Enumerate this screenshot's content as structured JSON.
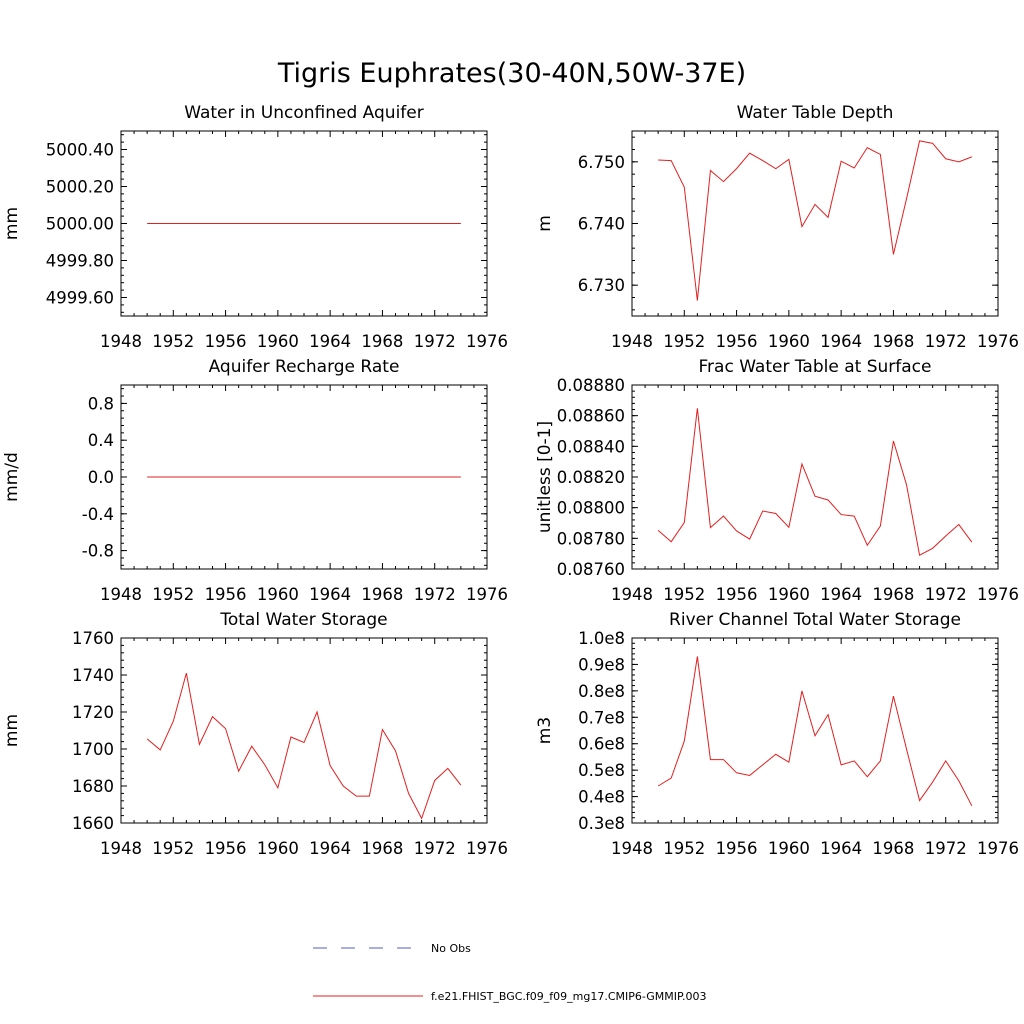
{
  "figure": {
    "title": "Tigris Euphrates(30-40N,50W-37E)"
  },
  "legend": {
    "entries": [
      {
        "label": "No Obs",
        "color": "#4f5fb6",
        "style": "dashed"
      },
      {
        "label": "f.e21.FHIST_BGC.f09_f09_mg17.CMIP6-GMMIP.003",
        "color": "#e32020",
        "style": "solid"
      }
    ]
  },
  "chart_data": [
    {
      "type": "line",
      "title": "Water in Unconfined Aquifer",
      "ylabel": "mm",
      "xlim": [
        1948,
        1976
      ],
      "ylim": [
        4999.5,
        5000.5
      ],
      "xticks": [
        "1948",
        "1952",
        "1956",
        "1960",
        "1964",
        "1968",
        "1972",
        "1976"
      ],
      "yticks": [
        4999.6,
        4999.8,
        5000.0,
        5000.2,
        5000.4
      ],
      "ytick_labels": [
        "4999.60",
        "4999.80",
        "5000.00",
        "5000.20",
        "5000.40"
      ],
      "x": [
        1950,
        1951,
        1952,
        1953,
        1954,
        1955,
        1956,
        1957,
        1958,
        1959,
        1960,
        1961,
        1962,
        1963,
        1964,
        1965,
        1966,
        1967,
        1968,
        1969,
        1970,
        1971,
        1972,
        1973,
        1974
      ],
      "series": [
        {
          "color": "#e32020",
          "values": [
            5000,
            5000,
            5000,
            5000,
            5000,
            5000,
            5000,
            5000,
            5000,
            5000,
            5000,
            5000,
            5000,
            5000,
            5000,
            5000,
            5000,
            5000,
            5000,
            5000,
            5000,
            5000,
            5000,
            5000,
            5000
          ]
        }
      ]
    },
    {
      "type": "line",
      "title": "Water Table Depth",
      "ylabel": "m",
      "xlim": [
        1948,
        1976
      ],
      "ylim": [
        6.725,
        6.755
      ],
      "xticks": [
        "1948",
        "1952",
        "1956",
        "1960",
        "1964",
        "1968",
        "1972",
        "1976"
      ],
      "yticks": [
        6.73,
        6.74,
        6.75
      ],
      "ytick_labels": [
        "6.730",
        "6.740",
        "6.750"
      ],
      "x": [
        1950,
        1951,
        1952,
        1953,
        1954,
        1955,
        1956,
        1957,
        1958,
        1959,
        1960,
        1961,
        1962,
        1963,
        1964,
        1965,
        1966,
        1967,
        1968,
        1969,
        1970,
        1971,
        1972,
        1973,
        1974
      ],
      "series": [
        {
          "color": "#e32020",
          "values": [
            6.7503,
            6.7502,
            6.7459,
            6.7275,
            6.7486,
            6.7468,
            6.7489,
            6.7514,
            6.7502,
            6.7489,
            6.7504,
            6.7395,
            6.7431,
            6.741,
            6.7501,
            6.749,
            6.7523,
            6.7512,
            6.735,
            6.744,
            6.7534,
            6.753,
            6.7505,
            6.75,
            6.7508
          ]
        }
      ]
    },
    {
      "type": "line",
      "title": "Aquifer Recharge Rate",
      "ylabel": "mm/d",
      "xlim": [
        1948,
        1976
      ],
      "ylim": [
        -1.0,
        1.0
      ],
      "xticks": [
        "1948",
        "1952",
        "1956",
        "1960",
        "1964",
        "1968",
        "1972",
        "1976"
      ],
      "yticks": [
        -0.8,
        -0.4,
        0.0,
        0.4,
        0.8
      ],
      "ytick_labels": [
        "-0.8",
        "-0.4",
        "0.0",
        "0.4",
        "0.8"
      ],
      "x": [
        1950,
        1951,
        1952,
        1953,
        1954,
        1955,
        1956,
        1957,
        1958,
        1959,
        1960,
        1961,
        1962,
        1963,
        1964,
        1965,
        1966,
        1967,
        1968,
        1969,
        1970,
        1971,
        1972,
        1973,
        1974
      ],
      "series": [
        {
          "color": "#e32020",
          "values": [
            0,
            0,
            0,
            0,
            0,
            0,
            0,
            0,
            0,
            0,
            0,
            0,
            0,
            0,
            0,
            0,
            0,
            0,
            0,
            0,
            0,
            0,
            0,
            0,
            0
          ]
        }
      ]
    },
    {
      "type": "line",
      "title": "Frac Water Table at Surface",
      "ylabel": "unitless [0-1]",
      "xlim": [
        1948,
        1976
      ],
      "ylim": [
        0.0876,
        0.0888
      ],
      "xticks": [
        "1948",
        "1952",
        "1956",
        "1960",
        "1964",
        "1968",
        "1972",
        "1976"
      ],
      "yticks": [
        0.0876,
        0.0878,
        0.088,
        0.0882,
        0.0884,
        0.0886,
        0.0888
      ],
      "ytick_labels": [
        "0.08760",
        "0.08780",
        "0.08800",
        "0.08820",
        "0.08840",
        "0.08860",
        "0.08880"
      ],
      "x": [
        1950,
        1951,
        1952,
        1953,
        1954,
        1955,
        1956,
        1957,
        1958,
        1959,
        1960,
        1961,
        1962,
        1963,
        1964,
        1965,
        1966,
        1967,
        1968,
        1969,
        1970,
        1971,
        1972,
        1973,
        1974
      ],
      "series": [
        {
          "color": "#e32020",
          "values": [
            0.087852,
            0.087778,
            0.087903,
            0.088648,
            0.08787,
            0.087945,
            0.087848,
            0.087795,
            0.087978,
            0.087962,
            0.087872,
            0.088285,
            0.088075,
            0.08805,
            0.087955,
            0.087945,
            0.087755,
            0.08788,
            0.088435,
            0.08815,
            0.08769,
            0.087735,
            0.087815,
            0.08789,
            0.087775
          ]
        }
      ]
    },
    {
      "type": "line",
      "title": "Total Water Storage",
      "ylabel": "mm",
      "xlim": [
        1948,
        1976
      ],
      "ylim": [
        1660,
        1760
      ],
      "xticks": [
        "1948",
        "1952",
        "1956",
        "1960",
        "1964",
        "1968",
        "1972",
        "1976"
      ],
      "yticks": [
        1660,
        1680,
        1700,
        1720,
        1740,
        1760
      ],
      "ytick_labels": [
        "1660",
        "1680",
        "1700",
        "1720",
        "1740",
        "1760"
      ],
      "x": [
        1950,
        1951,
        1952,
        1953,
        1954,
        1955,
        1956,
        1957,
        1958,
        1959,
        1960,
        1961,
        1962,
        1963,
        1964,
        1965,
        1966,
        1967,
        1968,
        1969,
        1970,
        1971,
        1972,
        1973,
        1974
      ],
      "series": [
        {
          "color": "#e32020",
          "values": [
            1705.5,
            1699.5,
            1715,
            1741,
            1702.5,
            1717.5,
            1711,
            1688,
            1701.5,
            1691.5,
            1679,
            1706.5,
            1703.5,
            1720,
            1691,
            1680,
            1674.5,
            1674.5,
            1710.5,
            1699,
            1676,
            1662.5,
            1683,
            1689.5,
            1680.5
          ]
        }
      ]
    },
    {
      "type": "line",
      "title": "River Channel Total Water Storage",
      "ylabel": "m3",
      "xlim": [
        1948,
        1976
      ],
      "ylim": [
        0.3,
        1.0
      ],
      "xticks": [
        "1948",
        "1952",
        "1956",
        "1960",
        "1964",
        "1968",
        "1972",
        "1976"
      ],
      "yticks": [
        0.3,
        0.4,
        0.5,
        0.6,
        0.7,
        0.8,
        0.9,
        1.0
      ],
      "ytick_labels": [
        "0.3e8",
        "0.4e8",
        "0.5e8",
        "0.6e8",
        "0.7e8",
        "0.8e8",
        "0.9e8",
        "1.0e8"
      ],
      "x": [
        1950,
        1951,
        1952,
        1953,
        1954,
        1955,
        1956,
        1957,
        1958,
        1959,
        1960,
        1961,
        1962,
        1963,
        1964,
        1965,
        1966,
        1967,
        1968,
        1969,
        1970,
        1971,
        1972,
        1973,
        1974
      ],
      "series": [
        {
          "color": "#e32020",
          "values": [
            0.44,
            0.47,
            0.61,
            0.93,
            0.54,
            0.54,
            0.49,
            0.48,
            0.52,
            0.56,
            0.53,
            0.8,
            0.63,
            0.71,
            0.52,
            0.535,
            0.475,
            0.535,
            0.78,
            0.58,
            0.385,
            0.455,
            0.535,
            0.46,
            0.365
          ]
        }
      ]
    }
  ]
}
